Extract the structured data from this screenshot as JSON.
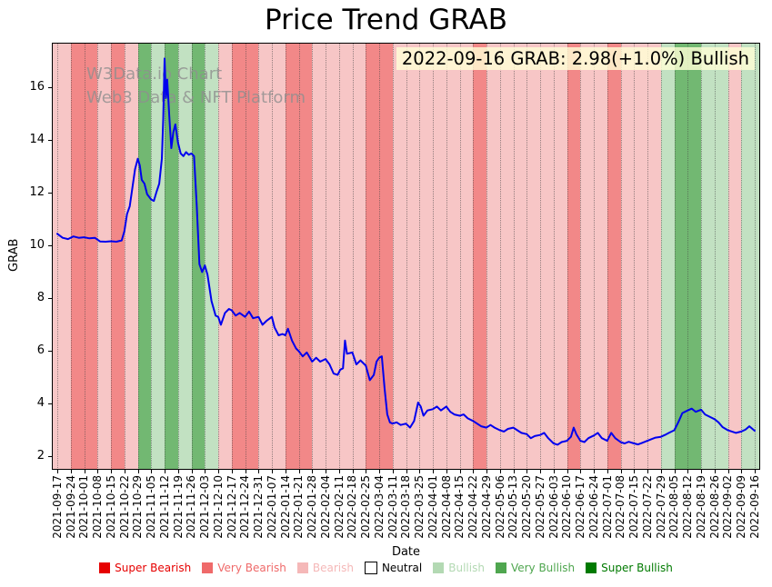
{
  "annotation": "2022-09-16 GRAB: 2.98(+1.0%) Bullish",
  "watermark": {
    "line1": "W3Data.io Chart",
    "line2": "Web3 Data & NFT Platform"
  },
  "chart_data": {
    "type": "line",
    "title": "Price Trend GRAB",
    "xlabel": "Date",
    "ylabel": "GRAB",
    "ylim": [
      1.5,
      17.7
    ],
    "yticks": [
      2,
      4,
      6,
      8,
      10,
      12,
      14,
      16
    ],
    "grid": "vertical-dotted",
    "legend_position": "bottom",
    "categories": [
      "2021-09-17",
      "2021-09-24",
      "2021-10-01",
      "2021-10-08",
      "2021-10-15",
      "2021-10-22",
      "2021-10-29",
      "2021-11-05",
      "2021-11-12",
      "2021-11-19",
      "2021-11-26",
      "2021-12-03",
      "2021-12-10",
      "2021-12-17",
      "2021-12-24",
      "2021-12-31",
      "2022-01-07",
      "2022-01-14",
      "2022-01-21",
      "2022-01-28",
      "2022-02-04",
      "2022-02-11",
      "2022-02-18",
      "2022-02-25",
      "2022-03-04",
      "2022-03-11",
      "2022-03-18",
      "2022-03-25",
      "2022-04-01",
      "2022-04-08",
      "2022-04-15",
      "2022-04-22",
      "2022-04-29",
      "2022-05-06",
      "2022-05-13",
      "2022-05-20",
      "2022-05-27",
      "2022-06-03",
      "2022-06-10",
      "2022-06-17",
      "2022-06-24",
      "2022-07-01",
      "2022-07-08",
      "2022-07-15",
      "2022-07-22",
      "2022-07-29",
      "2022-08-05",
      "2022-08-12",
      "2022-08-19",
      "2022-08-26",
      "2022-09-02",
      "2022-09-09",
      "2022-09-16"
    ],
    "series": [
      {
        "name": "GRAB price",
        "color": "#0000ee",
        "points": [
          [
            0,
            10.45
          ],
          [
            0.4,
            10.3
          ],
          [
            0.8,
            10.25
          ],
          [
            1.2,
            10.35
          ],
          [
            1.6,
            10.3
          ],
          [
            2,
            10.32
          ],
          [
            2.4,
            10.28
          ],
          [
            2.8,
            10.3
          ],
          [
            3.2,
            10.16
          ],
          [
            3.6,
            10.15
          ],
          [
            4,
            10.17
          ],
          [
            4.4,
            10.15
          ],
          [
            4.8,
            10.2
          ],
          [
            5,
            10.55
          ],
          [
            5.2,
            11.2
          ],
          [
            5.4,
            11.5
          ],
          [
            5.6,
            12.2
          ],
          [
            5.8,
            12.9
          ],
          [
            6,
            13.3
          ],
          [
            6.15,
            13.05
          ],
          [
            6.3,
            12.5
          ],
          [
            6.5,
            12.35
          ],
          [
            6.7,
            11.95
          ],
          [
            7,
            11.75
          ],
          [
            7.2,
            11.7
          ],
          [
            7.4,
            12.05
          ],
          [
            7.6,
            12.35
          ],
          [
            7.8,
            13.3
          ],
          [
            7.9,
            14.8
          ],
          [
            8,
            17.1
          ],
          [
            8.1,
            15.6
          ],
          [
            8.2,
            16.3
          ],
          [
            8.35,
            14.9
          ],
          [
            8.5,
            13.7
          ],
          [
            8.65,
            14.3
          ],
          [
            8.8,
            14.6
          ],
          [
            9,
            13.9
          ],
          [
            9.2,
            13.5
          ],
          [
            9.4,
            13.4
          ],
          [
            9.6,
            13.55
          ],
          [
            9.8,
            13.45
          ],
          [
            10,
            13.5
          ],
          [
            10.2,
            13.4
          ],
          [
            10.4,
            11.5
          ],
          [
            10.6,
            9.3
          ],
          [
            10.8,
            9.0
          ],
          [
            11,
            9.25
          ],
          [
            11.2,
            8.9
          ],
          [
            11.5,
            7.9
          ],
          [
            11.8,
            7.35
          ],
          [
            12,
            7.3
          ],
          [
            12.2,
            7.0
          ],
          [
            12.5,
            7.45
          ],
          [
            12.8,
            7.6
          ],
          [
            13,
            7.55
          ],
          [
            13.3,
            7.35
          ],
          [
            13.6,
            7.45
          ],
          [
            14,
            7.3
          ],
          [
            14.3,
            7.5
          ],
          [
            14.6,
            7.25
          ],
          [
            15,
            7.3
          ],
          [
            15.3,
            7.0
          ],
          [
            15.6,
            7.15
          ],
          [
            16,
            7.3
          ],
          [
            16.2,
            6.9
          ],
          [
            16.5,
            6.6
          ],
          [
            16.8,
            6.65
          ],
          [
            17,
            6.6
          ],
          [
            17.2,
            6.85
          ],
          [
            17.5,
            6.4
          ],
          [
            17.8,
            6.1
          ],
          [
            18,
            6.0
          ],
          [
            18.3,
            5.8
          ],
          [
            18.6,
            5.95
          ],
          [
            19,
            5.6
          ],
          [
            19.3,
            5.75
          ],
          [
            19.6,
            5.6
          ],
          [
            20,
            5.7
          ],
          [
            20.3,
            5.5
          ],
          [
            20.6,
            5.15
          ],
          [
            20.9,
            5.1
          ],
          [
            21.1,
            5.3
          ],
          [
            21.3,
            5.35
          ],
          [
            21.45,
            6.4
          ],
          [
            21.6,
            5.9
          ],
          [
            22,
            5.95
          ],
          [
            22.3,
            5.5
          ],
          [
            22.6,
            5.65
          ],
          [
            23,
            5.45
          ],
          [
            23.3,
            4.9
          ],
          [
            23.6,
            5.1
          ],
          [
            23.8,
            5.6
          ],
          [
            24,
            5.75
          ],
          [
            24.2,
            5.8
          ],
          [
            24.4,
            4.6
          ],
          [
            24.6,
            3.6
          ],
          [
            24.8,
            3.3
          ],
          [
            25,
            3.25
          ],
          [
            25.3,
            3.3
          ],
          [
            25.6,
            3.2
          ],
          [
            26,
            3.25
          ],
          [
            26.3,
            3.1
          ],
          [
            26.6,
            3.35
          ],
          [
            26.9,
            4.05
          ],
          [
            27.1,
            3.9
          ],
          [
            27.3,
            3.55
          ],
          [
            27.6,
            3.75
          ],
          [
            28,
            3.8
          ],
          [
            28.3,
            3.9
          ],
          [
            28.6,
            3.75
          ],
          [
            29,
            3.9
          ],
          [
            29.3,
            3.7
          ],
          [
            29.6,
            3.6
          ],
          [
            30,
            3.55
          ],
          [
            30.3,
            3.6
          ],
          [
            30.6,
            3.45
          ],
          [
            31,
            3.35
          ],
          [
            31.3,
            3.25
          ],
          [
            31.6,
            3.15
          ],
          [
            32,
            3.1
          ],
          [
            32.3,
            3.2
          ],
          [
            32.6,
            3.1
          ],
          [
            33,
            3.0
          ],
          [
            33.3,
            2.95
          ],
          [
            33.6,
            3.05
          ],
          [
            34,
            3.1
          ],
          [
            34.3,
            3.0
          ],
          [
            34.6,
            2.9
          ],
          [
            35,
            2.85
          ],
          [
            35.3,
            2.7
          ],
          [
            35.6,
            2.78
          ],
          [
            36,
            2.82
          ],
          [
            36.3,
            2.9
          ],
          [
            36.6,
            2.7
          ],
          [
            37,
            2.5
          ],
          [
            37.3,
            2.45
          ],
          [
            37.6,
            2.55
          ],
          [
            38,
            2.6
          ],
          [
            38.3,
            2.75
          ],
          [
            38.5,
            3.1
          ],
          [
            38.7,
            2.85
          ],
          [
            39,
            2.6
          ],
          [
            39.3,
            2.55
          ],
          [
            39.6,
            2.7
          ],
          [
            40,
            2.8
          ],
          [
            40.3,
            2.9
          ],
          [
            40.6,
            2.7
          ],
          [
            41,
            2.6
          ],
          [
            41.3,
            2.9
          ],
          [
            41.6,
            2.7
          ],
          [
            42,
            2.55
          ],
          [
            42.3,
            2.5
          ],
          [
            42.6,
            2.56
          ],
          [
            43,
            2.5
          ],
          [
            43.3,
            2.46
          ],
          [
            43.6,
            2.52
          ],
          [
            44,
            2.6
          ],
          [
            44.3,
            2.66
          ],
          [
            44.6,
            2.72
          ],
          [
            45,
            2.75
          ],
          [
            45.3,
            2.82
          ],
          [
            45.6,
            2.9
          ],
          [
            46,
            3.0
          ],
          [
            46.3,
            3.3
          ],
          [
            46.6,
            3.65
          ],
          [
            47,
            3.75
          ],
          [
            47.3,
            3.82
          ],
          [
            47.6,
            3.7
          ],
          [
            48,
            3.78
          ],
          [
            48.3,
            3.6
          ],
          [
            48.6,
            3.52
          ],
          [
            49,
            3.42
          ],
          [
            49.3,
            3.3
          ],
          [
            49.6,
            3.12
          ],
          [
            50,
            3.0
          ],
          [
            50.3,
            2.95
          ],
          [
            50.6,
            2.9
          ],
          [
            51,
            2.95
          ],
          [
            51.3,
            3.02
          ],
          [
            51.6,
            3.15
          ],
          [
            52,
            2.98
          ]
        ]
      }
    ],
    "sentiment_bands": [
      {
        "start": "2021-09-17",
        "end": "2021-09-24",
        "sentiment": "Bearish"
      },
      {
        "start": "2021-09-24",
        "end": "2021-10-01",
        "sentiment": "Very Bearish"
      },
      {
        "start": "2021-10-01",
        "end": "2021-10-08",
        "sentiment": "Very Bearish"
      },
      {
        "start": "2021-10-08",
        "end": "2021-10-15",
        "sentiment": "Bearish"
      },
      {
        "start": "2021-10-15",
        "end": "2021-10-22",
        "sentiment": "Very Bearish"
      },
      {
        "start": "2021-10-22",
        "end": "2021-10-29",
        "sentiment": "Bearish"
      },
      {
        "start": "2021-10-29",
        "end": "2021-11-05",
        "sentiment": "Very Bullish"
      },
      {
        "start": "2021-11-05",
        "end": "2021-11-12",
        "sentiment": "Bullish"
      },
      {
        "start": "2021-11-12",
        "end": "2021-11-19",
        "sentiment": "Very Bullish"
      },
      {
        "start": "2021-11-19",
        "end": "2021-11-26",
        "sentiment": "Bullish"
      },
      {
        "start": "2021-11-26",
        "end": "2021-12-03",
        "sentiment": "Very Bullish"
      },
      {
        "start": "2021-12-03",
        "end": "2021-12-10",
        "sentiment": "Bullish"
      },
      {
        "start": "2021-12-10",
        "end": "2021-12-17",
        "sentiment": "Bearish"
      },
      {
        "start": "2021-12-17",
        "end": "2021-12-24",
        "sentiment": "Very Bearish"
      },
      {
        "start": "2021-12-24",
        "end": "2021-12-31",
        "sentiment": "Very Bearish"
      },
      {
        "start": "2021-12-31",
        "end": "2022-01-07",
        "sentiment": "Bearish"
      },
      {
        "start": "2022-01-07",
        "end": "2022-01-14",
        "sentiment": "Bearish"
      },
      {
        "start": "2022-01-14",
        "end": "2022-01-21",
        "sentiment": "Very Bearish"
      },
      {
        "start": "2022-01-21",
        "end": "2022-01-28",
        "sentiment": "Very Bearish"
      },
      {
        "start": "2022-01-28",
        "end": "2022-02-04",
        "sentiment": "Bearish"
      },
      {
        "start": "2022-02-04",
        "end": "2022-02-11",
        "sentiment": "Bearish"
      },
      {
        "start": "2022-02-11",
        "end": "2022-02-18",
        "sentiment": "Bearish"
      },
      {
        "start": "2022-02-18",
        "end": "2022-02-25",
        "sentiment": "Bearish"
      },
      {
        "start": "2022-02-25",
        "end": "2022-03-04",
        "sentiment": "Very Bearish"
      },
      {
        "start": "2022-03-04",
        "end": "2022-03-11",
        "sentiment": "Very Bearish"
      },
      {
        "start": "2022-03-11",
        "end": "2022-03-18",
        "sentiment": "Bearish"
      },
      {
        "start": "2022-03-18",
        "end": "2022-03-25",
        "sentiment": "Bearish"
      },
      {
        "start": "2022-03-25",
        "end": "2022-04-01",
        "sentiment": "Bearish"
      },
      {
        "start": "2022-04-01",
        "end": "2022-04-08",
        "sentiment": "Bearish"
      },
      {
        "start": "2022-04-08",
        "end": "2022-04-15",
        "sentiment": "Bearish"
      },
      {
        "start": "2022-04-15",
        "end": "2022-04-22",
        "sentiment": "Bearish"
      },
      {
        "start": "2022-04-22",
        "end": "2022-04-29",
        "sentiment": "Very Bearish"
      },
      {
        "start": "2022-04-29",
        "end": "2022-05-06",
        "sentiment": "Bearish"
      },
      {
        "start": "2022-05-06",
        "end": "2022-05-13",
        "sentiment": "Bearish"
      },
      {
        "start": "2022-05-13",
        "end": "2022-05-20",
        "sentiment": "Bearish"
      },
      {
        "start": "2022-05-20",
        "end": "2022-05-27",
        "sentiment": "Bearish"
      },
      {
        "start": "2022-05-27",
        "end": "2022-06-03",
        "sentiment": "Bearish"
      },
      {
        "start": "2022-06-03",
        "end": "2022-06-10",
        "sentiment": "Bearish"
      },
      {
        "start": "2022-06-10",
        "end": "2022-06-17",
        "sentiment": "Very Bearish"
      },
      {
        "start": "2022-06-17",
        "end": "2022-06-24",
        "sentiment": "Bearish"
      },
      {
        "start": "2022-06-24",
        "end": "2022-07-01",
        "sentiment": "Bearish"
      },
      {
        "start": "2022-07-01",
        "end": "2022-07-08",
        "sentiment": "Very Bearish"
      },
      {
        "start": "2022-07-08",
        "end": "2022-07-15",
        "sentiment": "Bearish"
      },
      {
        "start": "2022-07-15",
        "end": "2022-07-22",
        "sentiment": "Bearish"
      },
      {
        "start": "2022-07-22",
        "end": "2022-07-29",
        "sentiment": "Bearish"
      },
      {
        "start": "2022-07-29",
        "end": "2022-08-05",
        "sentiment": "Bullish"
      },
      {
        "start": "2022-08-05",
        "end": "2022-08-12",
        "sentiment": "Very Bullish"
      },
      {
        "start": "2022-08-12",
        "end": "2022-08-19",
        "sentiment": "Very Bullish"
      },
      {
        "start": "2022-08-19",
        "end": "2022-08-26",
        "sentiment": "Bullish"
      },
      {
        "start": "2022-08-26",
        "end": "2022-09-02",
        "sentiment": "Bullish"
      },
      {
        "start": "2022-09-02",
        "end": "2022-09-09",
        "sentiment": "Bearish"
      },
      {
        "start": "2022-09-09",
        "end": "2022-09-16",
        "sentiment": "Bullish"
      }
    ],
    "legend": [
      {
        "label": "Super Bearish",
        "color": "#e60000",
        "text_color": "#e60000"
      },
      {
        "label": "Very Bearish",
        "color": "#ef6a6a",
        "text_color": "#ef6a6a"
      },
      {
        "label": "Bearish",
        "color": "#f5b8b8",
        "text_color": "#f5b8b8"
      },
      {
        "label": "Neutral",
        "color": "#ffffff",
        "text_color": "#000000"
      },
      {
        "label": "Bullish",
        "color": "#b3d9b3",
        "text_color": "#b3d9b3"
      },
      {
        "label": "Very Bullish",
        "color": "#4fa64f",
        "text_color": "#4fa64f"
      },
      {
        "label": "Super Bullish",
        "color": "#007a00",
        "text_color": "#007a00"
      }
    ]
  }
}
